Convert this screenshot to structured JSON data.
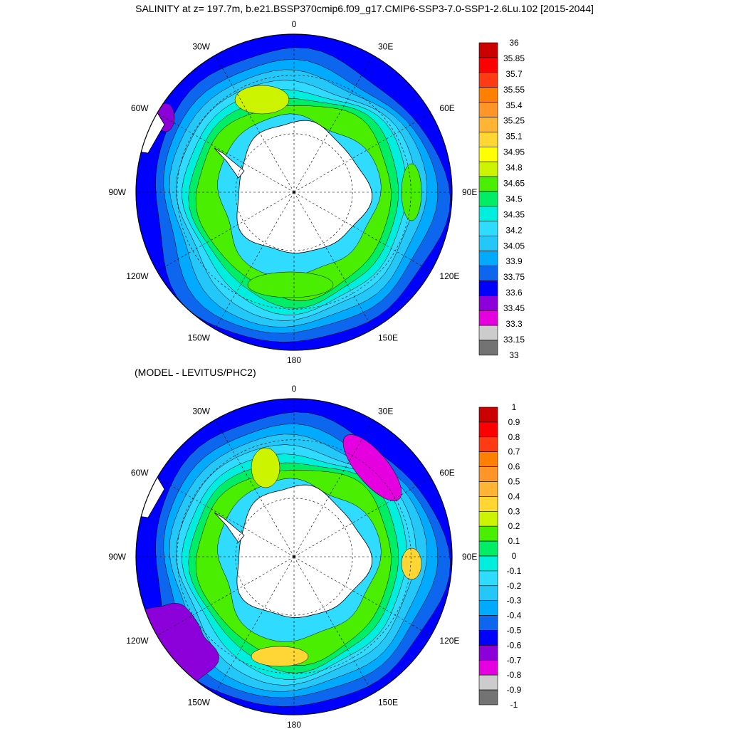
{
  "title": "SALINITY at z= 197.7m, b.e21.BSSP370cmip6.f09_g17.CMIP6-SSP3-7.0-SSP1-2.6Lu.102 [2015-2044]",
  "subtitle": "(MODEL - LEVITUS/PHC2)",
  "chart_data": [
    {
      "type": "heatmap",
      "projection": "south-polar-stereographic",
      "title": "SALINITY at z= 197.7m, b.e21.BSSP370cmip6.f09_g17.CMIP6-SSP3-7.0-SSP1-2.6Lu.102 [2015-2044]",
      "longitude_labels": [
        "0",
        "30E",
        "60E",
        "90E",
        "120E",
        "150E",
        "180",
        "150W",
        "120W",
        "90W",
        "60W",
        "30W"
      ],
      "colorbar": {
        "levels": [
          "33",
          "33.15",
          "33.3",
          "33.45",
          "33.6",
          "33.75",
          "33.9",
          "34.05",
          "34.2",
          "34.35",
          "34.5",
          "34.65",
          "34.8",
          "34.95",
          "35.1",
          "35.25",
          "35.4",
          "35.55",
          "35.7",
          "35.85",
          "36"
        ],
        "colors": [
          "#737373",
          "#cccccc",
          "#e600e0",
          "#8c00d9",
          "#0000ff",
          "#0c66ee",
          "#00aaff",
          "#23c8f8",
          "#2fdcff",
          "#00eedd",
          "#00ee66",
          "#4aee00",
          "#ccf400",
          "#ffff00",
          "#ffd633",
          "#ffb533",
          "#ff9528",
          "#ff7f00",
          "#ff3b14",
          "#ff0000",
          "#cc0000"
        ]
      },
      "field_summary": {
        "open_ocean_north": "33.6-33.75",
        "antarctic_circumpolar_band": "34.5-34.8",
        "weddell_gyre_max": "34.8-34.95",
        "near_continent": "34.2-34.35"
      }
    },
    {
      "type": "heatmap",
      "projection": "south-polar-stereographic",
      "title": "(MODEL - LEVITUS/PHC2)",
      "longitude_labels": [
        "0",
        "30E",
        "60E",
        "90E",
        "120E",
        "150E",
        "180",
        "150W",
        "120W",
        "90W",
        "60W",
        "30W"
      ],
      "colorbar": {
        "levels": [
          "-1",
          "-0.9",
          "-0.8",
          "-0.7",
          "-0.6",
          "-0.5",
          "-0.4",
          "-0.3",
          "-0.2",
          "-0.1",
          "0",
          "0.1",
          "0.2",
          "0.3",
          "0.4",
          "0.5",
          "0.6",
          "0.7",
          "0.8",
          "0.9",
          "1"
        ],
        "colors": [
          "#737373",
          "#cccccc",
          "#e600e0",
          "#8c00d9",
          "#0000ff",
          "#0c66ee",
          "#00aaff",
          "#23c8f8",
          "#2fdcff",
          "#00eedd",
          "#00ee66",
          "#4aee00",
          "#ccf400",
          "#ffd633",
          "#ffb533",
          "#ff9528",
          "#ff7f00",
          "#ff3b14",
          "#ff0000",
          "#cc0000"
        ]
      },
      "field_summary": {
        "open_ocean_north": "-0.6 to -0.5",
        "circumpolar_band": "0 to 0.2",
        "ross_sea_max": "0.3 to 0.4",
        "indian_sector_min": "-0.8 to -0.7"
      }
    }
  ]
}
